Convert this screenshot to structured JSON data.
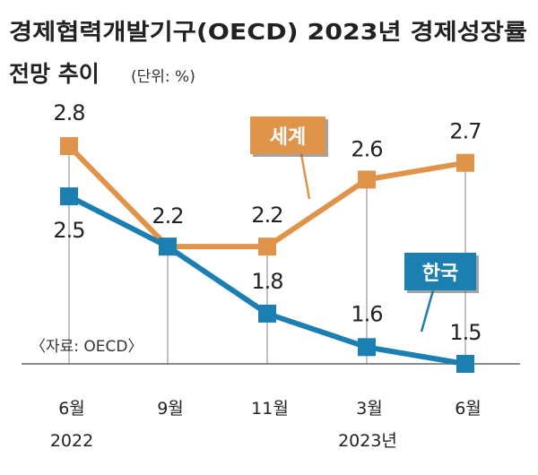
{
  "chart_data": {
    "type": "line",
    "title_line1": "경제협력개발기구(OECD) 2023년 경제성장률",
    "title_line2": "전망 추이",
    "unit": "(단위: %)",
    "source": "〈자료: OECD〉",
    "categories": [
      "6월",
      "9월",
      "11월",
      "3월",
      "6월"
    ],
    "year_labels": [
      "2022",
      "2023년"
    ],
    "ylim": [
      1.5,
      2.8
    ],
    "series": [
      {
        "name": "세계",
        "color": "#E0944A",
        "values": [
          2.8,
          2.2,
          2.2,
          2.6,
          2.7
        ],
        "labels": [
          "2.8",
          "",
          "2.2",
          "2.6",
          "2.7"
        ]
      },
      {
        "name": "한국",
        "color": "#1B7FB2",
        "values": [
          2.5,
          2.2,
          1.8,
          1.6,
          1.5
        ],
        "labels": [
          "2.5",
          "2.2",
          "1.8",
          "1.6",
          "1.5"
        ]
      }
    ]
  }
}
